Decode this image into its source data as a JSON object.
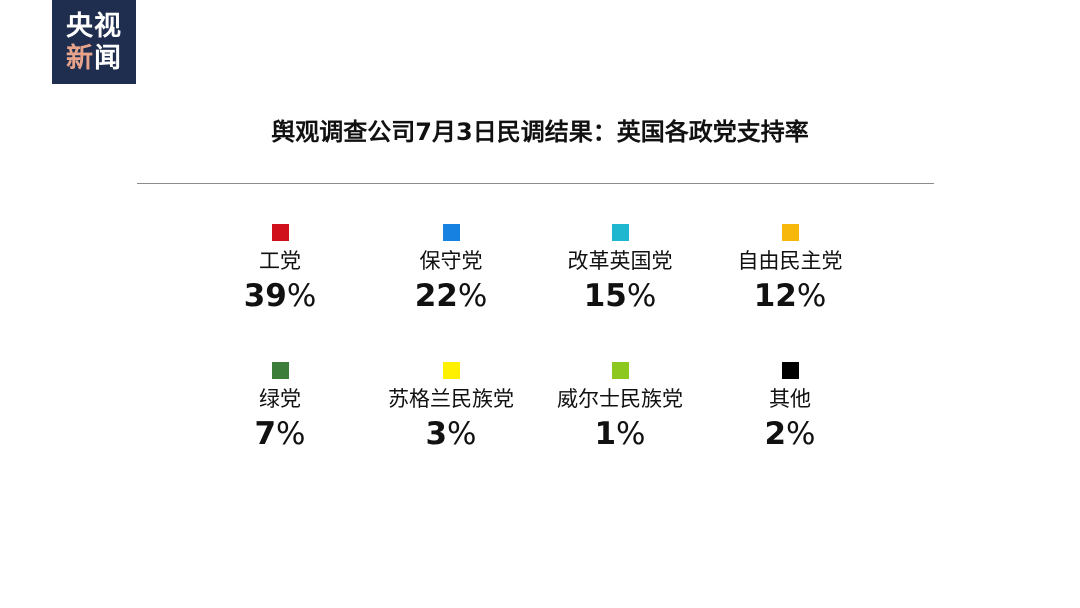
{
  "logo": {
    "line1": "央视",
    "line2_accent": "新",
    "line2_rest": "闻"
  },
  "chart_data": {
    "type": "table",
    "title": "舆观调查公司7月3日民调结果：英国各政党支持率",
    "unit": "%",
    "items": [
      {
        "name": "工党",
        "value": 39,
        "color": "#d0101a"
      },
      {
        "name": "保守党",
        "value": 22,
        "color": "#1681e0"
      },
      {
        "name": "改革英国党",
        "value": 15,
        "color": "#1fb6d0"
      },
      {
        "name": "自由民主党",
        "value": 12,
        "color": "#f8b70b"
      },
      {
        "name": "绿党",
        "value": 7,
        "color": "#3c7d3a"
      },
      {
        "name": "苏格兰民族党",
        "value": 3,
        "color": "#fff000"
      },
      {
        "name": "威尔士民族党",
        "value": 1,
        "color": "#8cc81e"
      },
      {
        "name": "其他",
        "value": 2,
        "color": "#000000"
      }
    ]
  }
}
